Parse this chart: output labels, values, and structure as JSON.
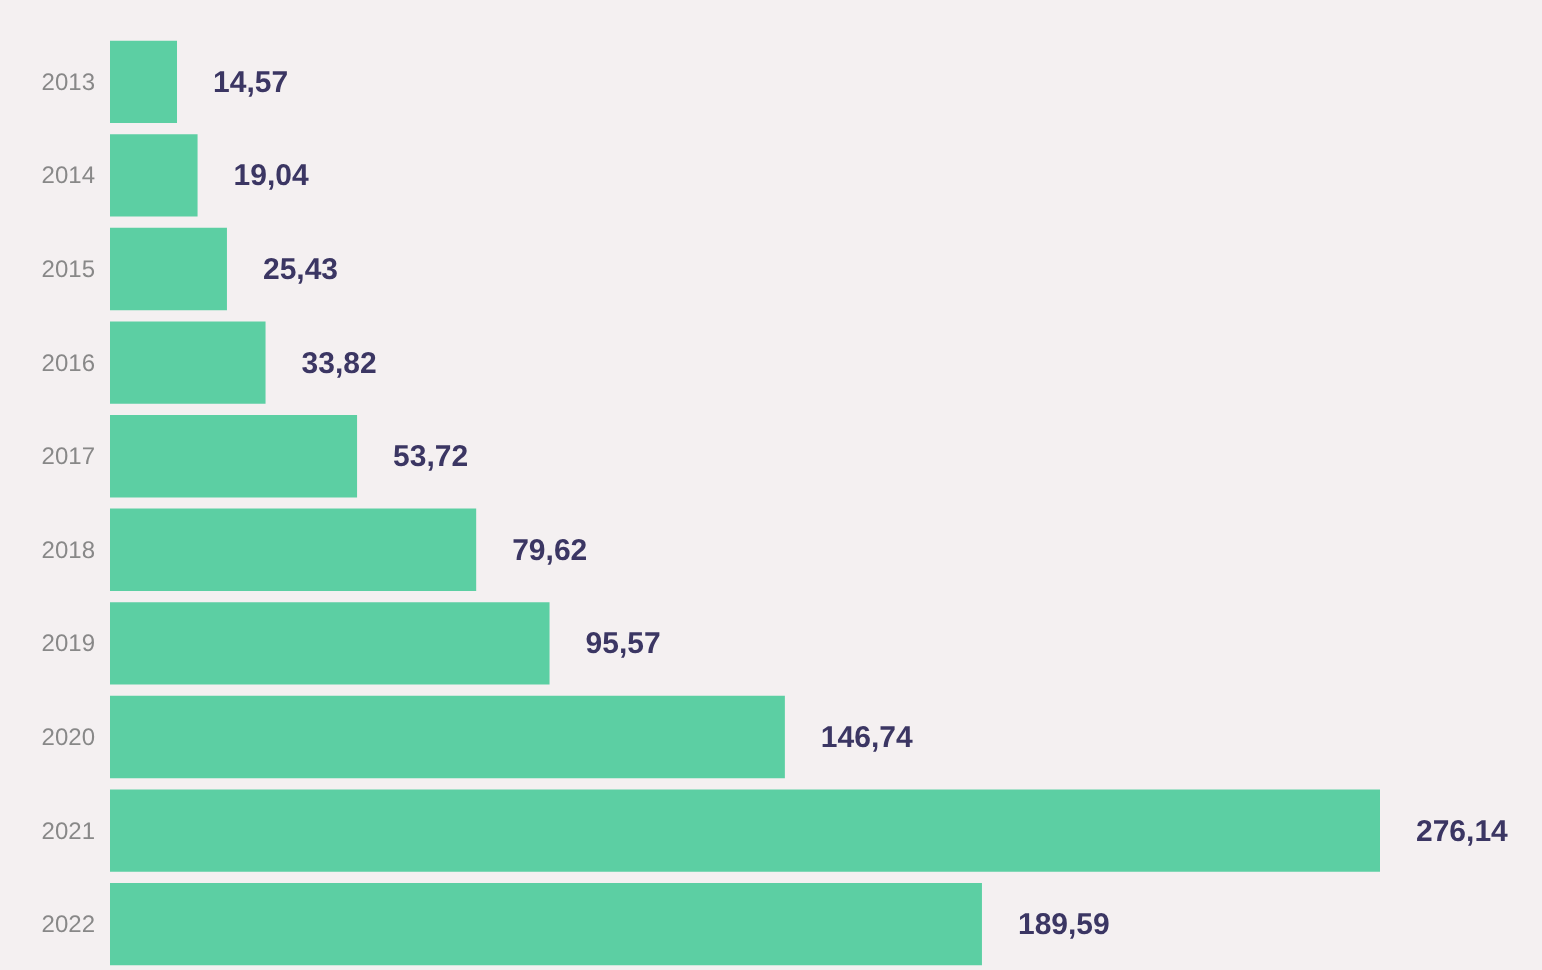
{
  "chart_data": {
    "type": "bar",
    "orientation": "horizontal",
    "categories": [
      "2013",
      "2014",
      "2015",
      "2016",
      "2017",
      "2018",
      "2019",
      "2020",
      "2021",
      "2022"
    ],
    "values": [
      14.57,
      19.04,
      25.43,
      33.82,
      53.72,
      79.62,
      95.57,
      146.74,
      276.14,
      189.59
    ],
    "value_labels": [
      "14,57",
      "19,04",
      "25,43",
      "33,82",
      "53,72",
      "79,62",
      "95,57",
      "146,74",
      "276,14",
      "189,59"
    ],
    "color": "#5ccfa3"
  }
}
